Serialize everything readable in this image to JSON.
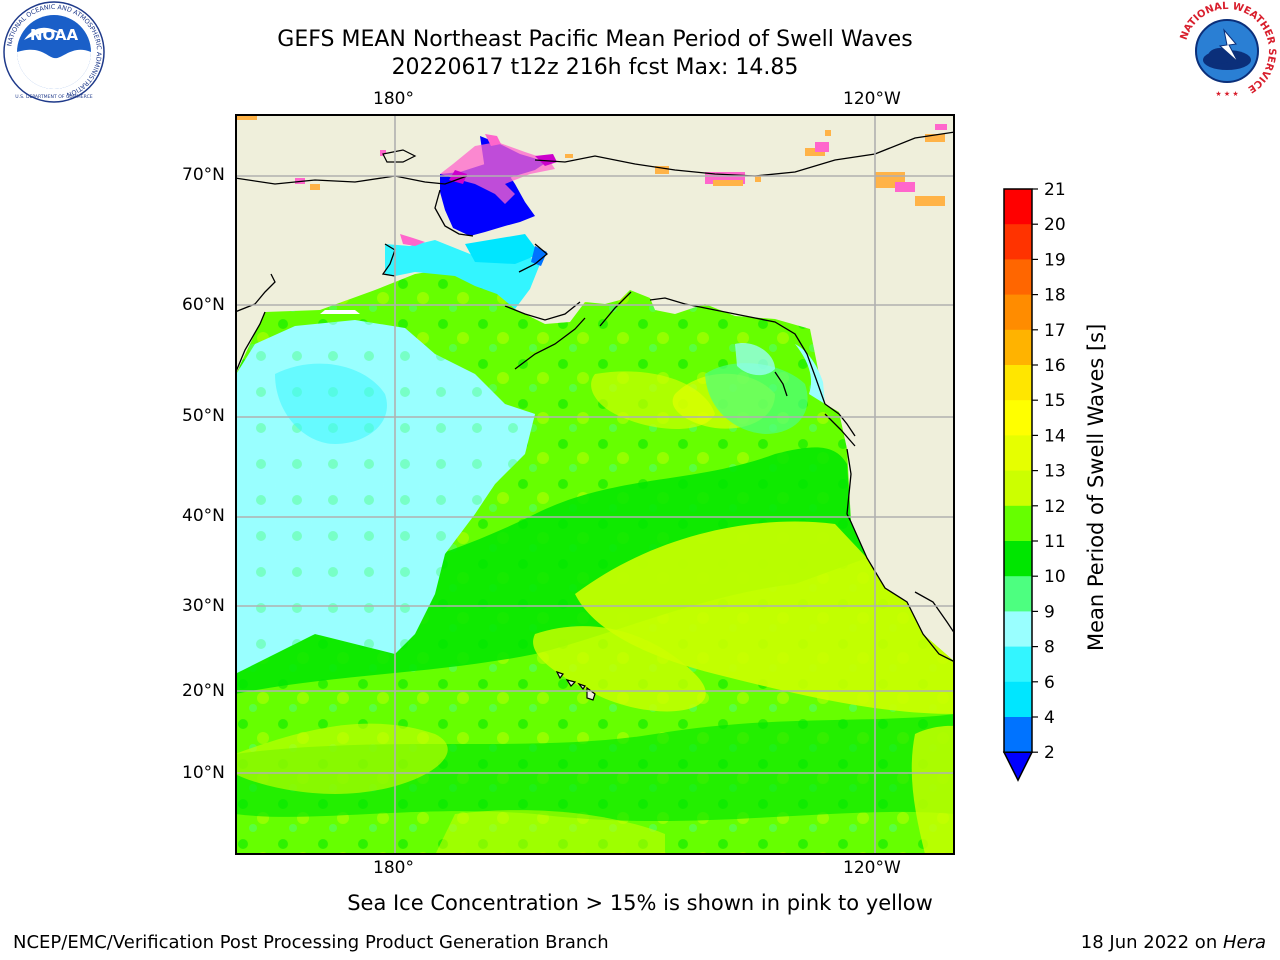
{
  "title_line1": "GEFS MEAN Northeast Pacific Mean Period of Swell Waves",
  "title_line2": "20220617 t12z 216h fcst   Max: 14.85",
  "lon_labels": [
    {
      "text": "180°"
    },
    {
      "text": "120°W"
    }
  ],
  "lat_labels": [
    {
      "text": "70°N"
    },
    {
      "text": "60°N"
    },
    {
      "text": "50°N"
    },
    {
      "text": "40°N"
    },
    {
      "text": "30°N"
    },
    {
      "text": "20°N"
    },
    {
      "text": "10°N"
    }
  ],
  "colorbar": {
    "title": "Mean Period of Swell Waves [s]",
    "extend_min_color": "#0000ff",
    "levels": [
      {
        "label": "2",
        "color": "#0073ff"
      },
      {
        "label": "4",
        "color": "#00e6ff"
      },
      {
        "label": "6",
        "color": "#33f5ff"
      },
      {
        "label": "8",
        "color": "#99ffff"
      },
      {
        "label": "9",
        "color": "#4dff80"
      },
      {
        "label": "10",
        "color": "#00e600"
      },
      {
        "label": "11",
        "color": "#66ff00"
      },
      {
        "label": "12",
        "color": "#ccff00"
      },
      {
        "label": "13",
        "color": "#e6ff00"
      },
      {
        "label": "14",
        "color": "#ffff00"
      },
      {
        "label": "15",
        "color": "#ffe600"
      },
      {
        "label": "16",
        "color": "#ffb300"
      },
      {
        "label": "17",
        "color": "#ff8c00"
      },
      {
        "label": "18",
        "color": "#ff6600"
      },
      {
        "label": "19",
        "color": "#ff3300"
      },
      {
        "label": "20",
        "color": "#ff0000"
      },
      {
        "label": "21",
        "color": ""
      }
    ]
  },
  "colors": {
    "land": "#efefdb",
    "grid": "#b0b0b0",
    "sea_ice_pink": "#ff66cc",
    "sea_ice_magenta": "#cc00cc",
    "sea_ice_orange": "#ffb347"
  },
  "note": "Sea Ice Concentration > 15% is shown in pink to yellow",
  "footer_left": "NCEP/EMC/Verification Post Processing Product Generation Branch",
  "footer_date": "18 Jun 2022 on ",
  "footer_machine": "Hera",
  "noaa_logo": {
    "name": "NOAA",
    "ring_text": "NATIONAL OCEANIC AND ATMOSPHERIC ADMINISTRATION",
    "bottom_text": "U.S. DEPARTMENT OF COMMERCE"
  },
  "nws_logo": {
    "ring_text": "NATIONAL WEATHER SERVICE"
  }
}
